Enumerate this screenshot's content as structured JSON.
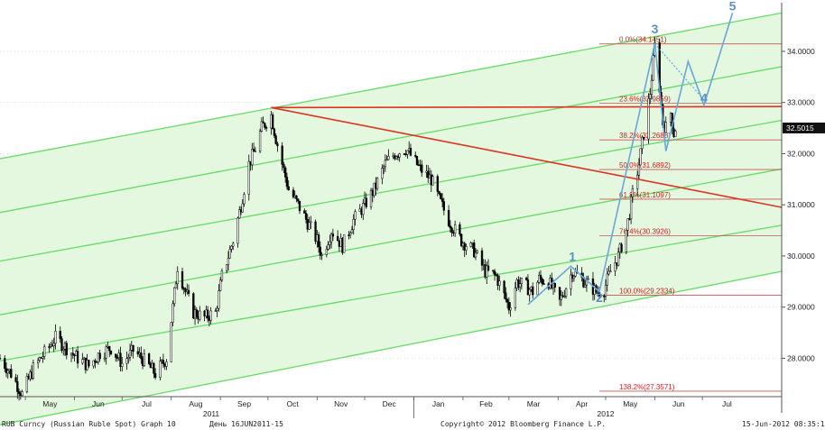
{
  "chart_data": {
    "type": "candlestick",
    "title": "RUB Curncy (Russian Ruble Spot) Graph 10",
    "period_label": "День 16JUN2011-15",
    "copyright": "Copyright© 2012 Bloomberg Finance L.P.",
    "timestamp": "15-Jun-2012 08:35:17",
    "last_price": "32.5015",
    "yaxis": {
      "ticks": [
        "28.0000",
        "29.0000",
        "30.0000",
        "31.0000",
        "32.0000",
        "33.0000",
        "34.0000"
      ],
      "ylim": [
        27.25,
        34.95
      ]
    },
    "xaxis": {
      "months": [
        "May",
        "Jun",
        "Jul",
        "Aug",
        "Sep",
        "Oct",
        "Nov",
        "Dec",
        "Jan",
        "Feb",
        "Mar",
        "Apr",
        "May",
        "Jun",
        "Jul"
      ],
      "years": [
        "2011",
        "2012"
      ]
    },
    "fibonacci": [
      {
        "label": "0.0%(34.1451)",
        "value": 34.1451
      },
      {
        "label": "23.6%(32.9859)",
        "value": 32.9859
      },
      {
        "label": "38.2%(32.2688)",
        "value": 32.2688
      },
      {
        "label": "50.0%(31.6892)",
        "value": 31.6892
      },
      {
        "label": "61.8%(31.1097)",
        "value": 31.1097
      },
      {
        "label": "76.4%(30.3926)",
        "value": 30.3926
      },
      {
        "label": "100.0%(29.2334)",
        "value": 29.2334
      },
      {
        "label": "138.2%(27.3571)",
        "value": 27.3571
      }
    ],
    "price_path": [
      [
        "2011-04-15",
        28.0
      ],
      [
        "2011-04-22",
        27.7
      ],
      [
        "2011-04-29",
        27.3
      ],
      [
        "2011-05-06",
        27.8
      ],
      [
        "2011-05-13",
        28.1
      ],
      [
        "2011-05-20",
        28.4
      ],
      [
        "2011-05-27",
        28.2
      ],
      [
        "2011-06-03",
        28.0
      ],
      [
        "2011-06-10",
        27.85
      ],
      [
        "2011-06-17",
        28.1
      ],
      [
        "2011-06-24",
        28.2
      ],
      [
        "2011-07-01",
        27.9
      ],
      [
        "2011-07-08",
        28.15
      ],
      [
        "2011-07-15",
        27.95
      ],
      [
        "2011-07-22",
        27.7
      ],
      [
        "2011-07-29",
        28.0
      ],
      [
        "2011-08-02",
        29.0
      ],
      [
        "2011-08-05",
        29.8
      ],
      [
        "2011-08-10",
        29.3
      ],
      [
        "2011-08-15",
        28.9
      ],
      [
        "2011-08-22",
        28.8
      ],
      [
        "2011-08-29",
        28.9
      ],
      [
        "2011-09-02",
        29.6
      ],
      [
        "2011-09-09",
        30.3
      ],
      [
        "2011-09-14",
        31.0
      ],
      [
        "2011-09-19",
        31.8
      ],
      [
        "2011-09-23",
        32.1
      ],
      [
        "2011-09-27",
        32.5
      ],
      [
        "2011-10-03",
        32.75
      ],
      [
        "2011-10-06",
        32.3
      ],
      [
        "2011-10-10",
        31.8
      ],
      [
        "2011-10-14",
        31.3
      ],
      [
        "2011-10-20",
        31.0
      ],
      [
        "2011-10-27",
        30.6
      ],
      [
        "2011-11-01",
        30.3
      ],
      [
        "2011-11-04",
        30.0
      ],
      [
        "2011-11-10",
        30.5
      ],
      [
        "2011-11-17",
        30.2
      ],
      [
        "2011-11-24",
        30.7
      ],
      [
        "2011-12-01",
        31.0
      ],
      [
        "2011-12-07",
        31.3
      ],
      [
        "2011-12-14",
        31.8
      ],
      [
        "2011-12-20",
        32.0
      ],
      [
        "2011-12-27",
        32.1
      ],
      [
        "2012-01-05",
        31.7
      ],
      [
        "2012-01-12",
        31.5
      ],
      [
        "2012-01-17",
        31.1
      ],
      [
        "2012-01-23",
        30.7
      ],
      [
        "2012-01-31",
        30.3
      ],
      [
        "2012-02-08",
        30.1
      ],
      [
        "2012-02-15",
        29.7
      ],
      [
        "2012-02-22",
        29.6
      ],
      [
        "2012-03-01",
        29.0
      ],
      [
        "2012-03-06",
        29.5
      ],
      [
        "2012-03-12",
        29.4
      ],
      [
        "2012-03-16",
        29.3
      ],
      [
        "2012-03-20",
        29.55
      ],
      [
        "2012-03-26",
        29.5
      ],
      [
        "2012-04-02",
        29.1
      ],
      [
        "2012-04-06",
        29.4
      ],
      [
        "2012-04-10",
        29.7
      ],
      [
        "2012-04-16",
        29.55
      ],
      [
        "2012-04-20",
        29.45
      ],
      [
        "2012-04-25",
        29.3
      ],
      [
        "2012-04-30",
        29.35
      ],
      [
        "2012-05-04",
        29.7
      ],
      [
        "2012-05-09",
        30.0
      ],
      [
        "2012-05-14",
        30.5
      ],
      [
        "2012-05-18",
        31.2
      ],
      [
        "2012-05-22",
        31.8
      ],
      [
        "2012-05-25",
        32.4
      ],
      [
        "2012-05-29",
        33.2
      ],
      [
        "2012-06-01",
        34.1
      ],
      [
        "2012-06-04",
        33.3
      ],
      [
        "2012-06-06",
        32.6
      ],
      [
        "2012-06-08",
        32.5
      ],
      [
        "2012-06-11",
        32.8
      ],
      [
        "2012-06-13",
        32.4
      ],
      [
        "2012-06-14",
        32.5
      ]
    ],
    "channel_start_date": "2011-04-15",
    "channel_end_date": "2012-08-20",
    "channel_lines": [
      {
        "start": 31.9,
        "end": 34.75
      },
      {
        "start": 30.85,
        "end": 33.7
      },
      {
        "start": 29.9,
        "end": 32.65
      },
      {
        "start": 28.85,
        "end": 31.7
      },
      {
        "start": 27.95,
        "end": 30.6
      },
      {
        "start": 26.7,
        "end": 29.7
      }
    ],
    "red_trendlines": [
      {
        "from": [
          "2011-10-03",
          32.9
        ],
        "to": [
          "2012-08-20",
          30.95
        ]
      },
      {
        "from": [
          "2011-10-03",
          32.9
        ],
        "to": [
          "2012-08-20",
          32.92
        ]
      }
    ],
    "wave_labels": [
      {
        "label": "1",
        "date": "2012-04-10",
        "value": 29.9
      },
      {
        "label": "2",
        "date": "2012-04-27",
        "value": 29.1
      },
      {
        "label": "3",
        "date": "2012-06-01",
        "value": 34.35
      },
      {
        "label": "4",
        "date": "2012-07-02",
        "value": 33.0
      },
      {
        "label": "5",
        "date": "2012-07-20",
        "value": 34.8
      }
    ],
    "wave_path": [
      [
        "2012-03-13",
        29.05
      ],
      [
        "2012-04-09",
        29.8
      ],
      [
        "2012-04-27",
        29.3
      ],
      [
        "2012-06-01",
        34.15
      ],
      [
        "2012-06-08",
        32.05
      ],
      [
        "2012-06-22",
        33.8
      ],
      [
        "2012-07-02",
        32.95
      ],
      [
        "2012-07-20",
        34.75
      ]
    ],
    "wave_dotted": [
      [
        "2012-06-01",
        34.15
      ],
      [
        "2012-07-02",
        33.05
      ]
    ],
    "colors": {
      "channel_fill": "#e4f7df",
      "channel_line": "#66dd66",
      "candle": "#000000",
      "fib_line": "#cc5555",
      "fib_text": "#cc2222",
      "red_trend": "#dd3322",
      "wave": "#6aa6de",
      "wave_label": "#5c8fc8",
      "last_price_bg": "#111111"
    }
  }
}
